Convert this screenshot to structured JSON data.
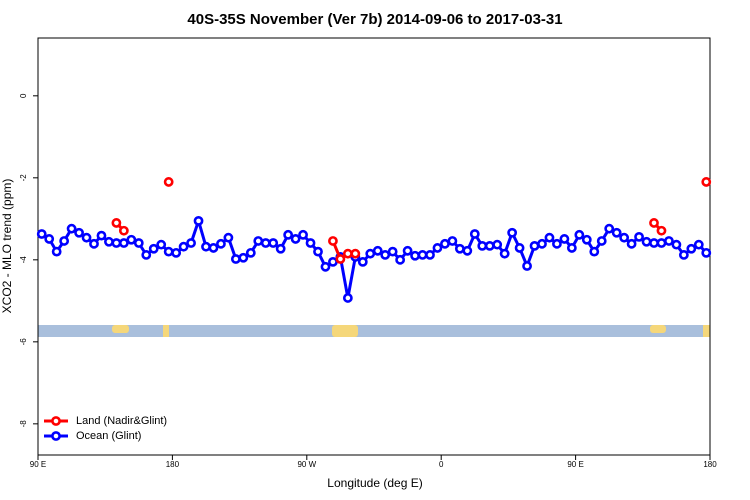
{
  "chart_data": {
    "type": "line",
    "title": "40S-35S November (Ver 7b)   2014-09-06 to 2017-03-31",
    "x_label": "Longitude (deg E)",
    "y_label": "XCO2 - MLO trend (ppm)",
    "x": [
      92.5,
      97.5,
      102.5,
      107.5,
      112.5,
      117.5,
      122.5,
      127.5,
      132.5,
      137.5,
      142.5,
      147.5,
      152.5,
      157.5,
      162.5,
      167.5,
      172.5,
      177.5,
      182.5,
      187.5,
      192.5,
      197.5,
      202.5,
      207.5,
      212.5,
      217.5,
      222.5,
      227.5,
      232.5,
      237.5,
      242.5,
      247.5,
      252.5,
      257.5,
      262.5,
      267.5,
      272.5,
      277.5,
      282.5,
      287.5,
      292.5,
      297.5,
      302.5,
      307.5,
      312.5,
      317.5,
      322.5,
      327.5,
      332.5,
      337.5,
      342.5,
      347.5,
      352.5,
      357.5,
      362.5,
      367.5,
      372.5,
      377.5,
      382.5,
      387.5,
      392.5,
      397.5,
      402.5,
      407.5,
      412.5,
      417.5,
      422.5,
      427.5,
      432.5,
      437.5,
      442.5,
      447.5,
      452.5,
      457.5,
      462.5,
      467.5,
      472.5,
      477.5,
      482.5,
      487.5,
      492.5,
      497.5,
      502.5,
      507.5,
      512.5,
      517.5,
      522.5,
      527.5,
      532.5,
      537.5
    ],
    "series": [
      {
        "name": "Land (Nadir&Glint)",
        "color": "#ff0000",
        "values": [
          null,
          null,
          null,
          null,
          null,
          null,
          null,
          null,
          null,
          null,
          -3.1,
          -3.29,
          null,
          null,
          null,
          null,
          null,
          -2.1,
          null,
          null,
          null,
          null,
          null,
          null,
          null,
          null,
          null,
          null,
          null,
          null,
          null,
          null,
          null,
          null,
          null,
          null,
          null,
          null,
          null,
          -3.54,
          -3.98,
          -3.85,
          -3.85,
          null,
          null,
          null,
          null,
          null,
          null,
          null,
          null,
          null,
          null,
          null,
          null,
          null,
          null,
          null,
          null,
          null,
          null,
          null,
          null,
          null,
          null,
          null,
          null,
          null,
          null,
          null,
          null,
          null,
          null,
          null,
          null,
          null,
          null,
          null,
          null,
          null,
          null,
          null,
          -3.1,
          -3.29,
          null,
          null,
          null,
          null,
          null,
          -2.1
        ]
      },
      {
        "name": "Ocean (Glint)",
        "color": "#0000ff",
        "values": [
          -3.37,
          -3.49,
          -3.8,
          -3.54,
          -3.24,
          -3.34,
          -3.46,
          -3.61,
          -3.41,
          -3.56,
          -3.59,
          -3.59,
          -3.51,
          -3.59,
          -3.88,
          -3.73,
          -3.63,
          -3.8,
          -3.83,
          -3.68,
          -3.59,
          -3.05,
          -3.68,
          -3.71,
          -3.61,
          -3.46,
          -3.98,
          -3.95,
          -3.83,
          -3.54,
          -3.59,
          -3.59,
          -3.73,
          -3.39,
          -3.49,
          -3.39,
          -3.59,
          -3.8,
          -4.17,
          -4.05,
          -3.93,
          -4.93,
          -3.93,
          -4.05,
          -3.85,
          -3.78,
          -3.88,
          -3.8,
          -4.0,
          -3.78,
          -3.9,
          -3.88,
          -3.88,
          -3.71,
          -3.61,
          -3.54,
          -3.73,
          -3.78,
          -3.37,
          -3.66,
          -3.66,
          -3.63,
          -3.85,
          -3.34,
          -3.71,
          -4.15,
          -3.66,
          -3.61,
          -3.46,
          -3.61,
          -3.49,
          -3.71,
          -3.39,
          -3.51,
          -3.8,
          -3.54,
          -3.24,
          -3.34,
          -3.46,
          -3.61,
          -3.44,
          -3.56,
          -3.59,
          -3.59,
          -3.54,
          -3.63,
          -3.88,
          -3.73,
          -3.63,
          -3.83
        ]
      }
    ],
    "xlim": [
      90,
      540
    ],
    "xticks": [
      {
        "value": 90,
        "label": "90 E"
      },
      180,
      {
        "value": 270,
        "label": "90 W"
      },
      {
        "value": 360,
        "label": "0"
      },
      {
        "value": 450,
        "label": "90 E"
      },
      {
        "value": 540,
        "label": "180"
      }
    ],
    "ylim": [
      -8.76,
      1.41
    ],
    "yticks": [
      0,
      -2,
      -4,
      -6,
      -8
    ],
    "legend": "bottom-left"
  }
}
